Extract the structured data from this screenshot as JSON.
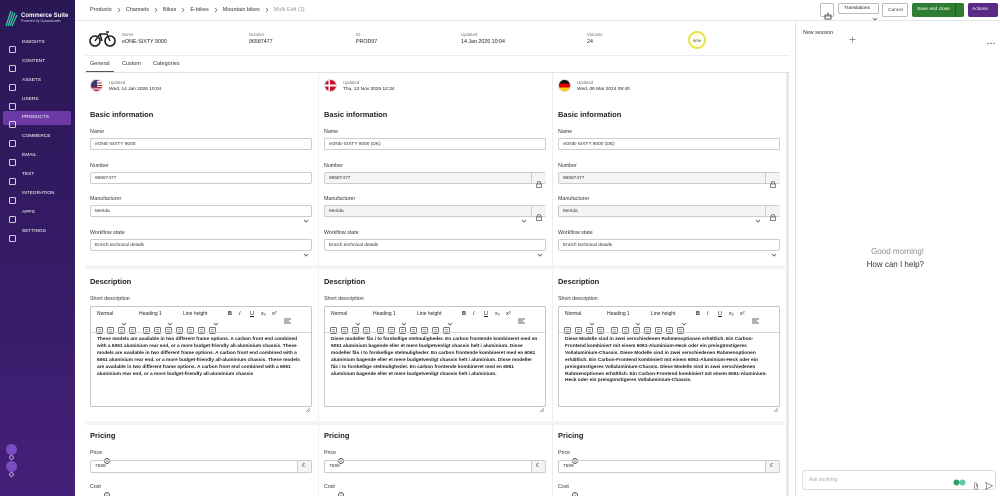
{
  "sidebar": {
    "brand": "Commerce Suite",
    "tagline": "Powered by Dynamicweb",
    "items": [
      "INSIGHTS",
      "CONTENT",
      "ASSETS",
      "USERS",
      "PRODUCTS",
      "COMMERCE",
      "EMAIL",
      "TEST",
      "INTEGRATION",
      "APPS",
      "SETTINGS"
    ]
  },
  "breadcrumb": [
    "Products",
    "Channels",
    "Bikes",
    "E-bikes",
    "Mountain bikes",
    "Multi Edit (3)"
  ],
  "buttons": {
    "translations": "Translations",
    "cancel": "Cancel",
    "save": "Save and close",
    "actions": "Actions"
  },
  "product": {
    "fields": [
      {
        "label": "Name",
        "value": "eONE-SIXTY 9000"
      },
      {
        "label": "Number",
        "value": "96587477"
      },
      {
        "label": "ID",
        "value": "PROD97"
      },
      {
        "label": "Updated",
        "value": "14 Jan 2026 10:04"
      },
      {
        "label": "Variants",
        "value": "24"
      }
    ],
    "completeness": "60%"
  },
  "tabs": [
    "General",
    "Custom",
    "Categories"
  ],
  "labels": {
    "updated": "Updated",
    "basic_information": "Basic information",
    "name": "Name",
    "number": "Number",
    "manufacturer": "Manufacturer",
    "workflow_state": "Workflow state",
    "description": "Description",
    "short_description": "Short description",
    "pricing": "Pricing",
    "price": "Price",
    "cost": "Cost",
    "currency": "€"
  },
  "editor": {
    "style": "Normal",
    "heading": "Heading 1",
    "line_height": "Line height",
    "format": [
      "B",
      "I",
      "U",
      "x₂",
      "x²"
    ]
  },
  "columns": [
    {
      "updated": "Wed, 14 Jan 2026 10:04",
      "name": "eONE-SIXTY 9000",
      "number": "96587477",
      "manufacturer": "Merida",
      "workflow_state": "Enrich technical details",
      "short_description": "These models are available in two different frame options. A carbon front end combined with a 6061 aluminium rear end, or a more budget-friendly all-aluminium chassis. These models are available in two different frame options. A carbon front end combined with a 6061 aluminium rear end, or a more budget-friendly all-aluminium chassis. These models are available in two different frame options. A carbon front end combined with a 6061 aluminium rear end, or a more budget-friendly all-aluminium chassis",
      "price": "7599"
    },
    {
      "updated": "Thu, 13 Nov 2025 12:34",
      "name": "eONE-SIXTY 9000 (DK)",
      "number": "96587477",
      "manufacturer": "Merida",
      "workflow_state": "Enrich technical details",
      "short_description": "Disse modeller fås i to forskellige stelmuligheder. En carbon frontende kombineret med en 6061 aluminium bagende eller et mere budgetvenligt chassis helt i aluminium. Disse modeller fås i to forskellige stelmuligheder. En carbon frontende kombineret med en 6061 aluminium bagende eller et mere budgetvenligt chassis helt i aluminium. Disse modeller fås i to forskellige stelmuligheder. En carbon frontende kombineret med en 6061 aluminium bagende eller et mere budgetvenligt chassis helt i aluminium.",
      "price": "7599"
    },
    {
      "updated": "Wed, 06 Mar 2024 09:40",
      "name": "eONE-SIXTY 9000 (DE)",
      "number": "96587477",
      "manufacturer": "Merida",
      "workflow_state": "Enrich technical details",
      "short_description": "Diese Modelle sind in zwei verschiedenen Rahmenoptionen erhältlich. Ein Carbon-Frontend kombiniert mit einem 6061-Aluminium-Heck oder ein preisgünstigeres Vollaluminium-Chassis. Diese Modelle sind in zwei verschiedenen Rahmenoptionen erhältlich. Ein Carbon-Frontend kombiniert mit einem 6061-Aluminium-Heck oder ein preisgünstigeres Vollaluminium-Chassis. Diese Modelle sind in zwei verschiedenen Rahmenoptionen erhältlich. Ein Carbon-Frontend kombiniert mit einem 6061-Aluminium-Heck oder ein preisgünstigeres Vollaluminium-Chassis.",
      "price": "7599"
    }
  ],
  "assistant": {
    "session": "New session",
    "greeting": "Good morning!",
    "prompt": "How can I help?",
    "placeholder": "Ask anything"
  }
}
